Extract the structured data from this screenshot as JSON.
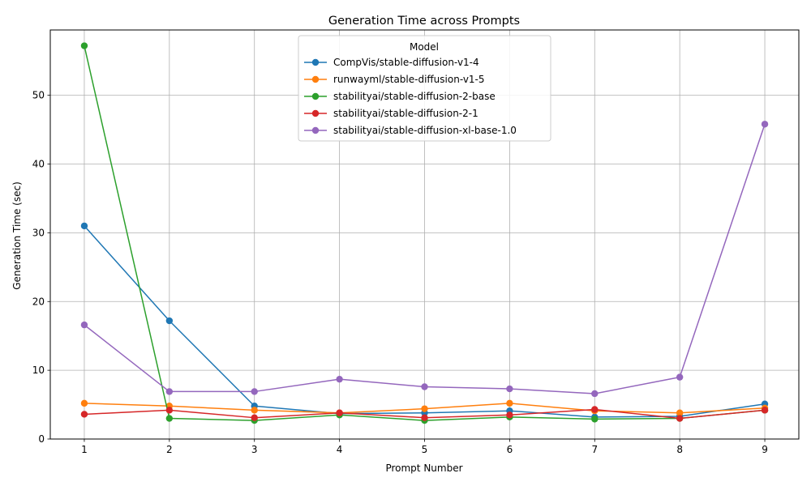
{
  "chart_data": {
    "type": "line",
    "title": "Generation Time across Prompts",
    "xlabel": "Prompt Number",
    "ylabel": "Generation Time (sec)",
    "x": [
      1,
      2,
      3,
      4,
      5,
      6,
      7,
      8,
      9
    ],
    "xlim": [
      0.6,
      9.4
    ],
    "ylim": [
      0,
      59.5
    ],
    "yticks": [
      0,
      10,
      20,
      30,
      40,
      50
    ],
    "grid": true,
    "legend": {
      "title": "Model",
      "placement": "upper-center"
    },
    "series": [
      {
        "name": "CompVis/stable-diffusion-v1-4",
        "color": "#1f77b4",
        "values": [
          31.0,
          17.2,
          4.8,
          3.7,
          3.8,
          4.1,
          3.2,
          3.3,
          5.1
        ]
      },
      {
        "name": "runwayml/stable-diffusion-v1-5",
        "color": "#ff7f0e",
        "values": [
          5.2,
          4.8,
          4.2,
          3.8,
          4.4,
          5.2,
          4.1,
          3.8,
          4.5
        ]
      },
      {
        "name": "stabilityai/stable-diffusion-2-base",
        "color": "#2ca02c",
        "values": [
          57.2,
          3.0,
          2.7,
          3.5,
          2.7,
          3.2,
          2.9,
          3.0,
          4.2
        ]
      },
      {
        "name": "stabilityai/stable-diffusion-2-1",
        "color": "#d62728",
        "values": [
          3.6,
          4.2,
          3.1,
          3.8,
          3.1,
          3.5,
          4.3,
          3.0,
          4.2
        ]
      },
      {
        "name": "stabilityai/stable-diffusion-xl-base-1.0",
        "color": "#9467bd",
        "values": [
          16.6,
          6.9,
          6.9,
          8.7,
          7.6,
          7.3,
          6.6,
          9.0,
          45.8
        ]
      }
    ]
  }
}
